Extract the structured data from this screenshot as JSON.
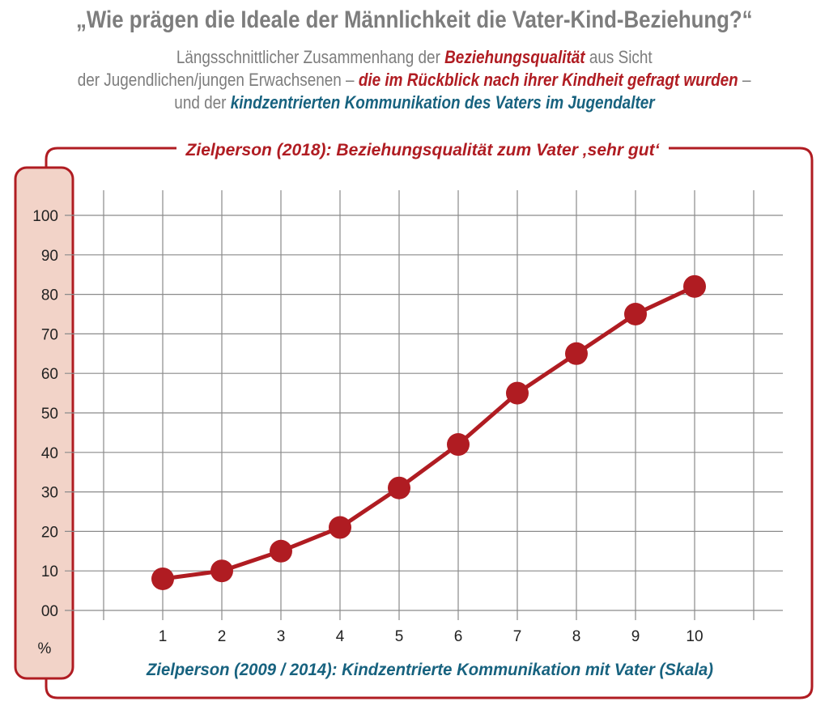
{
  "header": {
    "title": "„Wie prägen die Ideale der Männlichkeit die Vater-Kind-Beziehung?“",
    "line1_a": "Längsschnittlicher Zusammenhang der ",
    "line1_b": "Beziehungsqualität",
    "line1_c": " aus Sicht",
    "line2_a": "der Jugendlichen/jungen Erwachsenen – ",
    "line2_b": "die im Rückblick nach ihrer Kindheit gefragt wurden",
    "line2_c": " –",
    "line3_a": "und der ",
    "line3_b": "kindzentrierten Kommunikation des Vaters im Jugendalter"
  },
  "colors": {
    "accent_red": "#b01c22",
    "accent_blue": "#17627f",
    "axis_box_fill": "#f2d3c8",
    "grid": "#8a8a8a",
    "header_gray": "#7d7d7d"
  },
  "chart_data": {
    "type": "line",
    "title": "Zielperson (2018): Beziehungsqualität zum Vater ‚sehr gut‘",
    "xlabel": "Zielperson (2009 / 2014): Kindzentrierte Kommunikation mit Vater (Skala)",
    "ylabel": "%",
    "x": [
      1,
      2,
      3,
      4,
      5,
      6,
      7,
      8,
      9,
      10
    ],
    "x_tick_labels": [
      "1",
      "2",
      "3",
      "4",
      "5",
      "6",
      "7",
      "8",
      "9",
      "10"
    ],
    "y_tick_labels": [
      "00",
      "10",
      "20",
      "30",
      "40",
      "50",
      "60",
      "70",
      "80",
      "90",
      "100"
    ],
    "ylim": [
      0,
      100
    ],
    "grid": true,
    "series": [
      {
        "values": [
          8,
          10,
          15,
          21,
          31,
          42,
          55,
          65,
          75,
          82
        ],
        "color": "#b01c22",
        "marker": "circle"
      }
    ]
  }
}
